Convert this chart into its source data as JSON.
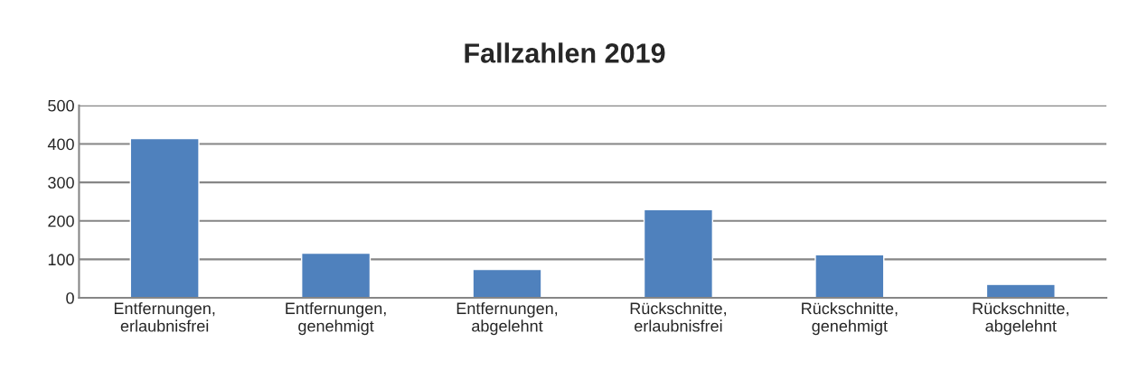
{
  "chart_data": {
    "type": "bar",
    "title": "Fallzahlen 2019",
    "categories": [
      "Entfernungen,\nerlaubnisfrei",
      "Entfernungen,\ngenehmigt",
      "Entfernungen,\nabgelehnt",
      "Rückschnitte,\nerlaubnisfrei",
      "Rückschnitte,\ngenehmigt",
      "Rückschnitte,\nabgelehnt"
    ],
    "values": [
      414,
      116,
      74,
      229,
      112,
      35
    ],
    "color": "#4f81bd",
    "ylim": [
      0,
      500
    ],
    "yticks": [
      0,
      100,
      200,
      300,
      400,
      500
    ],
    "grid": "y"
  }
}
